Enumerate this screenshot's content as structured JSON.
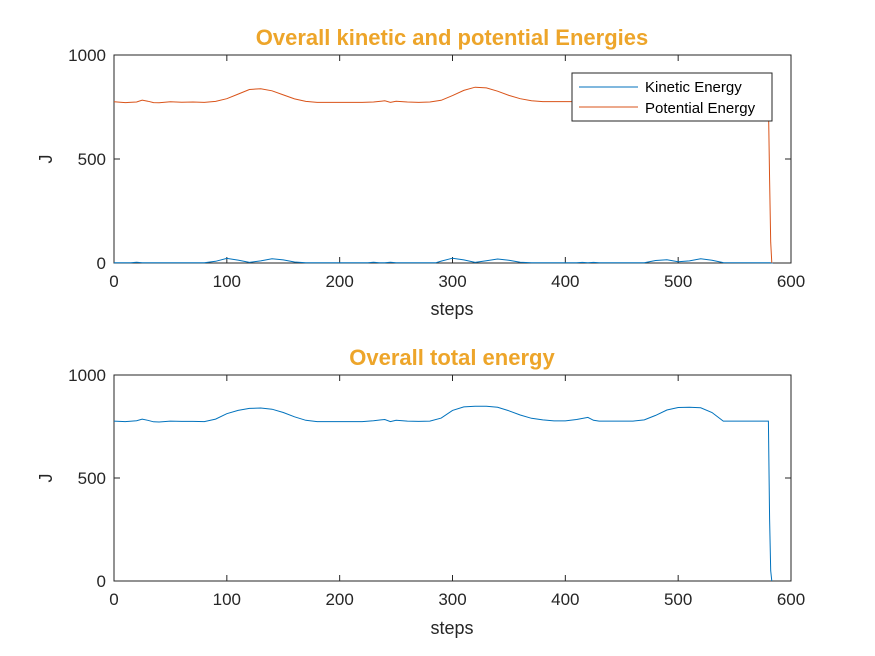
{
  "colors": {
    "title": "#EDA52A",
    "kinetic": "#0072BD",
    "potential": "#D95319",
    "total": "#0072BD",
    "axis": "#262626"
  },
  "chart_data": [
    {
      "type": "line",
      "title": "Overall kinetic and potential Energies",
      "xlabel": "steps",
      "ylabel": "J",
      "xlim": [
        0,
        600
      ],
      "ylim": [
        0,
        1000
      ],
      "xticks": [
        "0",
        "100",
        "200",
        "300",
        "400",
        "500",
        "600"
      ],
      "yticks": [
        "0",
        "500",
        "1000"
      ],
      "legend": "top-right",
      "grid": false,
      "series": [
        {
          "name": "Kinetic Energy",
          "color": "#0072BD",
          "x": [
            0,
            15,
            20,
            25,
            80,
            90,
            100,
            110,
            120,
            130,
            140,
            150,
            160,
            170,
            225,
            230,
            235,
            240,
            245,
            250,
            285,
            290,
            300,
            310,
            320,
            330,
            340,
            350,
            360,
            370,
            410,
            415,
            420,
            425,
            430,
            470,
            480,
            490,
            500,
            510,
            520,
            530,
            540,
            582,
            583,
            584
          ],
          "y": [
            1,
            1,
            4,
            1,
            1,
            8,
            22,
            14,
            3,
            10,
            20,
            15,
            5,
            1,
            1,
            4,
            1,
            1,
            4,
            1,
            1,
            9,
            23,
            15,
            3,
            11,
            19,
            13,
            4,
            1,
            1,
            3,
            1,
            3,
            1,
            1,
            12,
            16,
            6,
            10,
            20,
            13,
            2,
            1,
            0,
            0
          ]
        },
        {
          "name": "Potential Energy",
          "color": "#D95319",
          "x": [
            0,
            10,
            20,
            25,
            30,
            35,
            40,
            50,
            60,
            70,
            80,
            90,
            100,
            110,
            120,
            130,
            140,
            150,
            160,
            170,
            180,
            200,
            220,
            230,
            240,
            245,
            250,
            260,
            270,
            280,
            290,
            300,
            310,
            320,
            330,
            340,
            350,
            360,
            370,
            380,
            400,
            420,
            440,
            460,
            480,
            500,
            520,
            540,
            560,
            580,
            581,
            582,
            583
          ],
          "y": [
            775,
            771,
            774,
            783,
            778,
            771,
            770,
            775,
            773,
            774,
            772,
            777,
            790,
            812,
            834,
            838,
            828,
            808,
            789,
            777,
            772,
            772,
            772,
            774,
            780,
            772,
            778,
            774,
            772,
            774,
            782,
            805,
            830,
            845,
            842,
            826,
            806,
            790,
            780,
            776,
            776,
            776,
            776,
            776,
            776,
            776,
            776,
            776,
            776,
            776,
            400,
            100,
            0
          ]
        }
      ]
    },
    {
      "type": "line",
      "title": "Overall total energy",
      "xlabel": "steps",
      "ylabel": "J",
      "xlim": [
        0,
        600
      ],
      "ylim": [
        0,
        1000
      ],
      "xticks": [
        "0",
        "100",
        "200",
        "300",
        "400",
        "500",
        "600"
      ],
      "yticks": [
        "0",
        "500",
        "1000"
      ],
      "grid": false,
      "series": [
        {
          "color": "#0072BD",
          "x": [
            0,
            10,
            20,
            25,
            30,
            35,
            40,
            50,
            60,
            70,
            80,
            90,
            100,
            110,
            120,
            130,
            140,
            150,
            160,
            170,
            180,
            200,
            220,
            230,
            240,
            245,
            250,
            260,
            270,
            280,
            290,
            300,
            310,
            320,
            330,
            340,
            350,
            360,
            370,
            380,
            390,
            400,
            410,
            420,
            425,
            430,
            440,
            460,
            470,
            480,
            490,
            500,
            510,
            520,
            530,
            540,
            560,
            580,
            581,
            582,
            583
          ],
          "y": [
            776,
            774,
            778,
            786,
            780,
            773,
            772,
            776,
            775,
            775,
            774,
            786,
            812,
            828,
            838,
            840,
            834,
            818,
            797,
            780,
            774,
            774,
            774,
            778,
            784,
            774,
            780,
            776,
            775,
            776,
            791,
            828,
            845,
            848,
            848,
            843,
            826,
            806,
            790,
            782,
            777,
            777,
            784,
            794,
            780,
            776,
            776,
            776,
            782,
            804,
            830,
            842,
            843,
            841,
            818,
            776,
            776,
            776,
            300,
            50,
            0
          ]
        }
      ]
    }
  ]
}
